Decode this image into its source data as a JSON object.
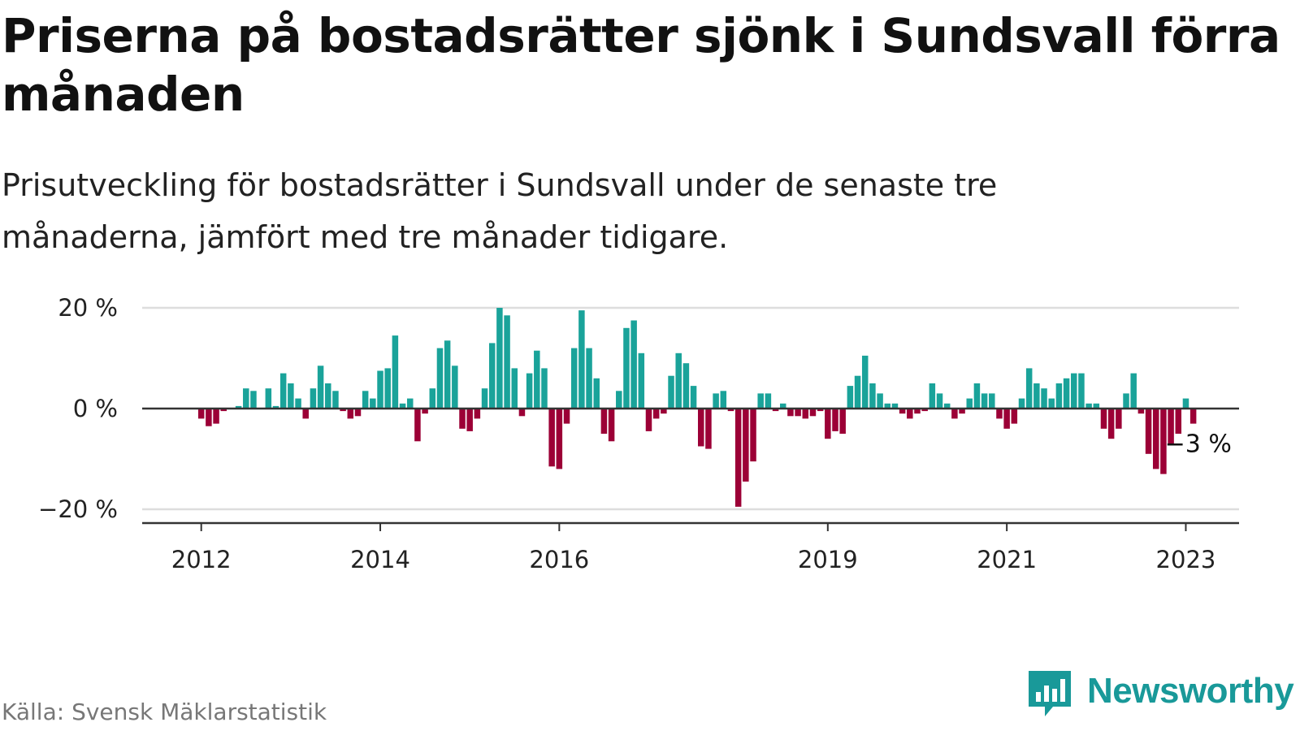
{
  "header": {
    "title": "Priserna på bostadsrätter sjönk i Sundsvall förra månaden",
    "subtitle": "Prisutveckling för bostadsrätter i Sundsvall under de senaste tre månaderna, jämfört med tre månader tidigare."
  },
  "footer": {
    "source": "Källa: Svensk Mäklarstatistik",
    "brand": "Newsworthy"
  },
  "icons": {
    "logo": "bar-chart-speech-bubble-icon"
  },
  "colors": {
    "positive": "#1aa39a",
    "negative": "#9c0036",
    "brand": "#199999",
    "axis": "#333333",
    "grid": "#dddddd"
  },
  "chart_data": {
    "type": "bar",
    "xlabel": "",
    "ylabel": "",
    "ylim": [
      -22,
      22
    ],
    "y_ticks": [
      {
        "value": 20,
        "label": "20 %"
      },
      {
        "value": 0,
        "label": "0 %"
      },
      {
        "value": -20,
        "label": "−20 %"
      }
    ],
    "x_ticks": [
      {
        "value": "2012-01",
        "label": "2012"
      },
      {
        "value": "2014-01",
        "label": "2014"
      },
      {
        "value": "2016-01",
        "label": "2016"
      },
      {
        "value": "2019-01",
        "label": "2019"
      },
      {
        "value": "2021-01",
        "label": "2021"
      },
      {
        "value": "2023-01",
        "label": "2023"
      }
    ],
    "grid": true,
    "colors_by_sign": {
      "positive": "#1aa39a",
      "negative": "#9c0036"
    },
    "annotation": {
      "x": "2023-02",
      "label": "−3 %"
    },
    "start": "2011-08",
    "values": [
      null,
      null,
      null,
      null,
      null,
      -2,
      -3.5,
      -3,
      -0.5,
      0,
      0.5,
      4,
      3.5,
      0,
      4,
      0.5,
      7,
      5,
      2,
      -2,
      4,
      8.5,
      5,
      3.5,
      -0.5,
      -2,
      -1.5,
      3.5,
      2,
      7.5,
      8,
      14.5,
      1,
      2,
      -6.5,
      -1,
      4,
      12,
      13.5,
      8.5,
      -4,
      -4.5,
      -2,
      4,
      13,
      20,
      18.5,
      8,
      -1.5,
      7,
      11.5,
      8,
      -11.5,
      -12,
      -3,
      12,
      19.5,
      12,
      6,
      -5,
      -6.5,
      3.5,
      16,
      17.5,
      11,
      -4.5,
      -2,
      -1,
      6.5,
      11,
      9,
      4.5,
      -7.5,
      -8,
      3,
      3.5,
      -0.5,
      -19.5,
      -14.5,
      -10.5,
      3,
      3,
      -0.5,
      1,
      -1.5,
      -1.5,
      -2,
      -1.5,
      -0.5,
      -6,
      -4.5,
      -5,
      4.5,
      6.5,
      10.5,
      5,
      3,
      1,
      1,
      -1,
      -2,
      -1,
      -0.5,
      5,
      3,
      1,
      -2,
      -1,
      2,
      5,
      3,
      3,
      -2,
      -4,
      -3,
      2,
      8,
      5,
      4,
      2,
      5,
      6,
      7,
      7,
      1,
      1,
      -4,
      -6,
      -4,
      3,
      7,
      -1,
      -9,
      -12,
      -13,
      -7,
      -5,
      2,
      -3
    ]
  }
}
